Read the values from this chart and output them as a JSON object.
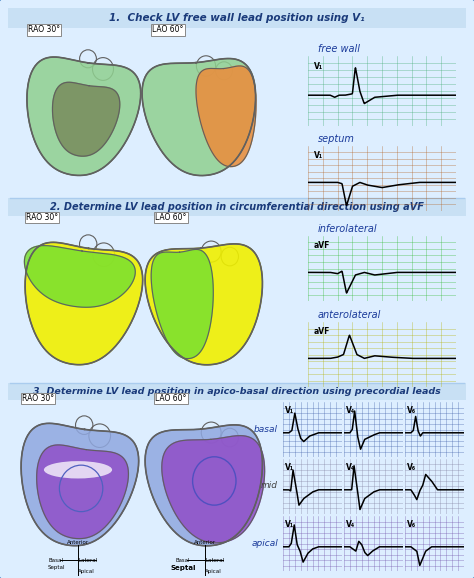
{
  "title1": "1.  Check LV free wall lead position using V₁",
  "title2": "2. Determine LV lead position in circumferential direction using aVF",
  "title3": "3. Determine LV lead position in apico-basal direction using precordial leads",
  "bg_color": "#ddeeff",
  "border_color": "#3a7abf",
  "title_band_color": "#c8e0f4",
  "label_rao": "RAO 30°",
  "label_lao": "LAO 60°",
  "free_wall_label": "free wall",
  "septum_label": "septum",
  "inferolateral_label": "inferolateral",
  "anterolateral_label": "anterolateral",
  "basal_label": "basal",
  "mid_label": "mid",
  "apical_label": "apical",
  "ecg_green_bg": "#80d8a8",
  "ecg_orange_bg": "#e8904a",
  "ecg_lime_bg": "#78e878",
  "ecg_yellow_bg": "#f0f000",
  "ecg_blue_bg": "#7090d8",
  "ecg_white_bg": "#e8e4f8",
  "ecg_purple_bg": "#b090d8",
  "heart_outline": "#606060",
  "lv_green": "#90d090",
  "lv_olive": "#7a9060",
  "lv_orange": "#e89040",
  "lv_yellow": "#f0f000",
  "lv_lime": "#78e030",
  "lv_blue": "#90a8e0",
  "lv_purple": "#9050c8",
  "title_color": "#1a3a7a",
  "label_color": "#1a3a9a",
  "section_divider": "#aaccee"
}
